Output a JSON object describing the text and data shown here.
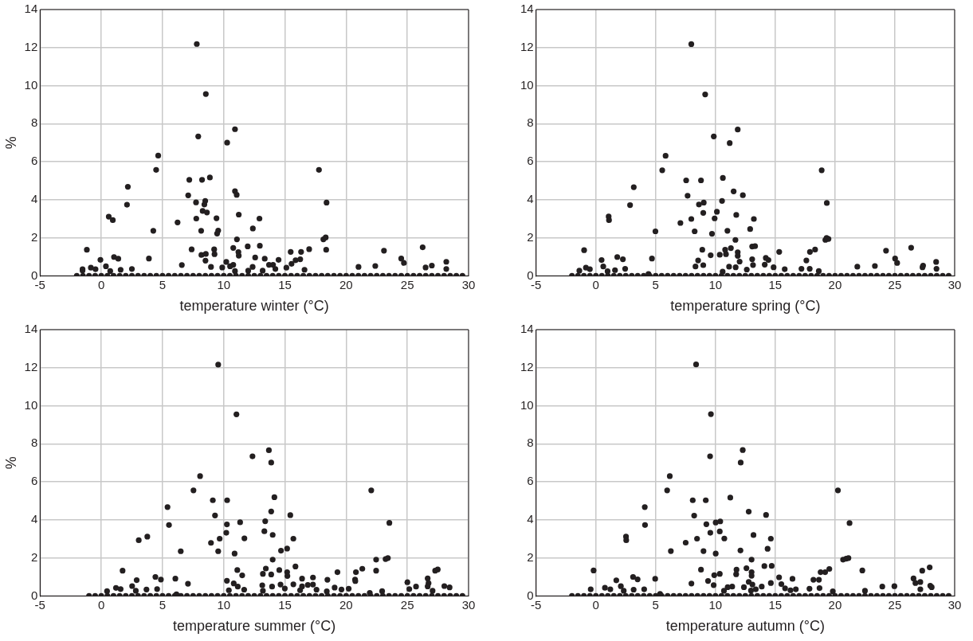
{
  "chart_data": [
    {
      "type": "scatter",
      "xlabel": "temperature winter (°C)",
      "ylabel": "%",
      "xlim": [
        -5,
        30
      ],
      "xticks": [
        -5,
        0,
        5,
        10,
        15,
        20,
        25,
        30
      ],
      "ylim": [
        0,
        14
      ],
      "yticks": [
        0,
        2,
        4,
        6,
        8,
        10,
        12,
        14
      ],
      "grid": true,
      "marker": "circle",
      "series": [
        {
          "color": "#231f20",
          "x": [
            7.8,
            8.54,
            7.92,
            10.92,
            10.28,
            4.65,
            4.48,
            17.78,
            7.19,
            8.23,
            8.87,
            2.17,
            7.1,
            10.92,
            11.06,
            18.4,
            2.1,
            7.74,
            8.49,
            8.42,
            8.28,
            8.63,
            0.61,
            0.94,
            7.76,
            9.41,
            11.23,
            12.92,
            6.23,
            4.25,
            8.16,
            9.55,
            9.46,
            12.38,
            11.08,
            18.14,
            18.33,
            -1.18,
            7.38,
            9.22,
            10.78,
            11.2,
            11.23,
            11.96,
            12.95,
            15.47,
            16.32,
            16.98,
            18.37,
            23.09,
            26.25,
            8.18,
            8.54,
            9.25,
            -0.07,
            1.04,
            1.39,
            3.89,
            8.51,
            12.57,
            13.35,
            14.48,
            15.87,
            16.25,
            24.5,
            24.72,
            28.18,
            10.21,
            0.38,
            -0.85,
            -0.47,
            -1.53,
            1.58,
            2.5,
            6.58,
            9.88,
            10.52,
            10.78,
            8.96,
            12.36,
            13.7,
            14.03,
            15.54,
            21.01,
            22.38,
            27.0,
            26.49,
            28.18,
            0.73,
            10.92,
            12.0,
            13.18,
            14.22,
            15.12,
            16.6,
            -1.53
          ],
          "values": [
            12.19,
            9.56,
            7.33,
            7.71,
            7.0,
            6.32,
            5.57,
            5.57,
            5.05,
            5.05,
            5.17,
            4.68,
            4.23,
            4.45,
            4.26,
            3.85,
            3.74,
            3.86,
            3.94,
            3.75,
            3.41,
            3.33,
            3.11,
            2.93,
            3.01,
            3.03,
            3.22,
            3.01,
            2.81,
            2.37,
            2.37,
            2.38,
            2.22,
            2.49,
            1.92,
            1.92,
            2.02,
            1.37,
            1.39,
            1.39,
            1.47,
            1.25,
            1.06,
            1.55,
            1.58,
            1.26,
            1.26,
            1.4,
            1.37,
            1.32,
            1.5,
            1.1,
            1.15,
            1.14,
            0.84,
            0.99,
            0.9,
            0.91,
            0.8,
            0.96,
            0.9,
            0.84,
            0.82,
            0.87,
            0.91,
            0.68,
            0.74,
            0.73,
            0.5,
            0.43,
            0.35,
            0.35,
            0.32,
            0.36,
            0.57,
            0.44,
            0.5,
            0.58,
            0.47,
            0.47,
            0.58,
            0.58,
            0.63,
            0.47,
            0.52,
            0.54,
            0.44,
            0.36,
            0.25,
            0.25,
            0.27,
            0.27,
            0.36,
            0.43,
            0.32,
            0.28
          ]
        },
        {
          "color": "#231f20",
          "x": [
            -2,
            -1.5,
            -1,
            -0.5,
            0,
            0.5,
            1,
            1.5,
            2,
            2.5,
            3,
            3.5,
            4,
            4.5,
            5,
            5.5,
            6,
            6.5,
            7,
            7.5,
            8,
            8.5,
            9,
            9.5,
            10,
            10.5,
            11,
            11.5,
            12,
            12.5,
            13,
            13.5,
            14,
            14.5,
            15,
            15.5,
            16,
            16.5,
            17,
            17.5,
            18,
            18.5,
            19,
            19.5,
            20,
            20.5,
            21,
            21.5,
            22,
            22.5,
            23,
            23.5,
            24,
            24.5,
            25,
            25.5,
            26,
            26.5,
            27,
            27.5,
            28,
            28.5,
            29,
            29.5
          ],
          "values": [
            0,
            0,
            0,
            0,
            0,
            0,
            0,
            0,
            0,
            0,
            0,
            0,
            0,
            0,
            0,
            0,
            0,
            0,
            0,
            0,
            0,
            0,
            0,
            0,
            0,
            0,
            0,
            0,
            0,
            0,
            0,
            0,
            0,
            0,
            0,
            0,
            0,
            0,
            0,
            0,
            0,
            0,
            0,
            0,
            0,
            0,
            0,
            0,
            0,
            0,
            0,
            0,
            0,
            0,
            0,
            0,
            0,
            0,
            0,
            0,
            0,
            0,
            0,
            0
          ]
        }
      ]
    },
    {
      "type": "scatter",
      "xlabel": "temperature spring (°C)",
      "xlim": [
        -5,
        30
      ],
      "xticks": [
        -5,
        0,
        5,
        10,
        15,
        20,
        25,
        30
      ],
      "ylim": [
        0,
        14
      ],
      "yticks": [
        0,
        2,
        4,
        6,
        8,
        10,
        12,
        14
      ],
      "grid": true,
      "marker": "circle",
      "series": [
        {
          "color": "#231f20",
          "x": [
            7.98,
            9.14,
            9.86,
            11.86,
            11.19,
            5.83,
            5.55,
            18.88,
            7.55,
            8.79,
            10.62,
            3.17,
            7.67,
            11.52,
            12.29,
            10.55,
            9.02,
            8.62,
            19.31,
            2.86,
            8.98,
            10.12,
            1.07,
            1.1,
            7.98,
            9.93,
            11.74,
            13.21,
            7.07,
            4.98,
            8.26,
            11.0,
            9.71,
            12.9,
            11.67,
            19.19,
            19.45,
            19.29,
            -0.98,
            8.9,
            10.81,
            11.29,
            11.86,
            11.86,
            13.07,
            13.31,
            15.33,
            17.9,
            18.33,
            24.26,
            26.36,
            9.6,
            10.36,
            10.88,
            0.48,
            1.79,
            2.26,
            4.69,
            8.55,
            13.07,
            14.21,
            14.43,
            17.6,
            25.02,
            25.19,
            28.45,
            12.02,
            0.62,
            -0.83,
            -0.5,
            -1.38,
            1.6,
            2.45,
            8.33,
            11.14,
            11.69,
            8.98,
            13.14,
            14.12,
            14.86,
            23.33,
            21.86,
            27.36,
            27.31,
            28.48,
            0.98,
            10.6,
            12.62,
            15.79,
            17.19,
            17.88,
            18.64,
            4.4
          ],
          "values": [
            12.18,
            9.54,
            7.33,
            7.69,
            6.98,
            6.31,
            5.55,
            5.55,
            5.02,
            5.02,
            5.15,
            4.66,
            4.21,
            4.44,
            4.24,
            3.94,
            3.85,
            3.75,
            3.83,
            3.72,
            3.31,
            3.37,
            3.12,
            2.93,
            2.99,
            3.02,
            3.2,
            2.99,
            2.78,
            2.34,
            2.34,
            2.37,
            2.21,
            2.46,
            1.89,
            1.89,
            1.94,
            1.99,
            1.35,
            1.37,
            1.37,
            1.46,
            1.24,
            1.05,
            1.54,
            1.56,
            1.26,
            1.26,
            1.38,
            1.32,
            1.48,
            1.08,
            1.11,
            1.14,
            0.83,
            0.99,
            0.87,
            0.91,
            0.81,
            0.87,
            0.94,
            0.83,
            0.81,
            0.91,
            0.68,
            0.73,
            0.75,
            0.49,
            0.43,
            0.35,
            0.27,
            0.3,
            0.37,
            0.49,
            0.48,
            0.45,
            0.56,
            0.57,
            0.59,
            0.45,
            0.52,
            0.48,
            0.54,
            0.45,
            0.37,
            0.24,
            0.22,
            0.33,
            0.35,
            0.37,
            0.37,
            0.25,
            0.1
          ]
        },
        {
          "color": "#231f20",
          "x": [
            -2,
            -1.5,
            -1,
            -0.5,
            0,
            0.5,
            1,
            1.5,
            2,
            2.5,
            3,
            3.5,
            4,
            4.5,
            5,
            5.5,
            6,
            6.5,
            7,
            7.5,
            8,
            8.5,
            9,
            9.5,
            10,
            10.5,
            11,
            11.5,
            12,
            12.5,
            13,
            13.5,
            14,
            14.5,
            15,
            15.5,
            16,
            16.5,
            17,
            17.5,
            18,
            18.5,
            19,
            19.5,
            20,
            20.5,
            21,
            21.5,
            22,
            22.5,
            23,
            23.5,
            24,
            24.5,
            25,
            25.5,
            26,
            26.5,
            27,
            27.5,
            28,
            28.5,
            29,
            29.5
          ],
          "values": [
            0,
            0,
            0,
            0,
            0,
            0,
            0,
            0,
            0,
            0,
            0,
            0,
            0,
            0,
            0,
            0,
            0,
            0,
            0,
            0,
            0,
            0,
            0,
            0,
            0,
            0,
            0,
            0,
            0,
            0,
            0,
            0,
            0,
            0,
            0,
            0,
            0,
            0,
            0,
            0,
            0,
            0,
            0,
            0,
            0,
            0,
            0,
            0,
            0,
            0,
            0,
            0,
            0,
            0,
            0,
            0,
            0,
            0,
            0,
            0,
            0,
            0,
            0,
            0
          ]
        }
      ]
    },
    {
      "type": "scatter",
      "xlabel": "temperature summer (°C)",
      "ylabel": "%",
      "xlim": [
        -5,
        30
      ],
      "xticks": [
        -5,
        0,
        5,
        10,
        15,
        20,
        25,
        30
      ],
      "ylim": [
        0,
        14
      ],
      "yticks": [
        0,
        2,
        4,
        6,
        8,
        10,
        12,
        14
      ],
      "grid": true,
      "marker": "circle",
      "series": [
        {
          "color": "#231f20",
          "x": [
            9.55,
            11.04,
            12.35,
            13.69,
            13.88,
            8.07,
            7.53,
            22.05,
            9.11,
            10.28,
            14.14,
            5.41,
            9.29,
            13.88,
            15.44,
            10.26,
            11.34,
            13.39,
            23.53,
            5.53,
            10.21,
            13.32,
            3.06,
            3.76,
            9.67,
            11.69,
            14.0,
            15.69,
            8.96,
            6.49,
            9.55,
            10.89,
            14.68,
            15.18,
            14.0,
            22.45,
            23.22,
            23.41,
            1.74,
            11.11,
            13.44,
            14.54,
            15.86,
            22.45,
            21.32,
            27.48,
            27.27,
            15.18,
            19.29,
            20.8,
            13.2,
            13.88,
            15.2,
            11.51,
            2.89,
            4.42,
            4.87,
            6.05,
            10.26,
            17.29,
            16.4,
            18.47,
            20.73,
            20.75,
            26.66,
            25.0,
            26.73,
            7.08,
            10.82,
            2.52,
            1.2,
            1.58,
            0.47,
            2.82,
            3.69,
            4.56,
            11.15,
            13.15,
            13.95,
            14.64,
            15.69,
            16.4,
            16.87,
            17.29,
            25.71,
            26.66,
            28.02,
            28.45,
            25.16,
            19.06,
            20.21,
            19.62,
            11.67,
            10.42,
            13.2,
            14.99,
            16.24,
            17.58,
            18.42,
            22.94,
            27.06,
            21.93,
            6.14
          ],
          "values": [
            12.16,
            9.55,
            7.34,
            7.66,
            7.01,
            6.3,
            5.55,
            5.55,
            5.03,
            5.03,
            5.19,
            4.67,
            4.23,
            4.44,
            4.25,
            3.76,
            3.87,
            3.93,
            3.84,
            3.73,
            3.32,
            3.4,
            2.93,
            3.12,
            3.01,
            3.03,
            3.21,
            3.01,
            2.79,
            2.35,
            2.35,
            2.23,
            2.38,
            2.49,
            1.91,
            1.91,
            1.94,
            1.99,
            1.33,
            1.36,
            1.44,
            1.36,
            1.55,
            1.33,
            1.43,
            1.39,
            1.33,
            1.25,
            1.25,
            1.25,
            1.16,
            1.13,
            1.05,
            1.08,
            0.83,
            1.0,
            0.86,
            0.91,
            0.8,
            0.97,
            0.91,
            0.85,
            0.86,
            0.78,
            0.92,
            0.72,
            0.67,
            0.64,
            0.66,
            0.52,
            0.42,
            0.36,
            0.25,
            0.27,
            0.34,
            0.36,
            0.49,
            0.56,
            0.49,
            0.6,
            0.61,
            0.5,
            0.58,
            0.6,
            0.49,
            0.5,
            0.52,
            0.45,
            0.36,
            0.44,
            0.38,
            0.34,
            0.33,
            0.3,
            0.27,
            0.39,
            0.3,
            0.33,
            0.24,
            0.25,
            0.27,
            0.16,
            0.09
          ]
        },
        {
          "color": "#231f20",
          "x": [
            -1,
            -0.5,
            0,
            0.5,
            1,
            1.5,
            2,
            2.5,
            3,
            3.5,
            4,
            4.5,
            5,
            5.5,
            6,
            6.5,
            7,
            7.5,
            8,
            8.5,
            9,
            9.5,
            10,
            10.5,
            11,
            11.5,
            12,
            12.5,
            13,
            13.5,
            14,
            14.5,
            15,
            15.5,
            16,
            16.5,
            17,
            17.5,
            18,
            18.5,
            19,
            19.5,
            20,
            20.5,
            21,
            21.5,
            22,
            22.5,
            23,
            23.5,
            24,
            24.5,
            25,
            25.5,
            26,
            26.5,
            27,
            27.5,
            28,
            28.5,
            29,
            29.5
          ],
          "values": [
            0,
            0,
            0,
            0,
            0,
            0,
            0,
            0,
            0,
            0,
            0,
            0,
            0,
            0,
            0,
            0,
            0,
            0,
            0,
            0,
            0,
            0,
            0,
            0,
            0,
            0,
            0,
            0,
            0,
            0,
            0,
            0,
            0,
            0,
            0,
            0,
            0,
            0,
            0,
            0,
            0,
            0,
            0,
            0,
            0,
            0,
            0,
            0,
            0,
            0,
            0,
            0,
            0,
            0,
            0,
            0,
            0,
            0,
            0,
            0,
            0,
            0
          ]
        }
      ]
    },
    {
      "type": "scatter",
      "xlabel": "temperature autumn (°C)",
      "xlim": [
        -5,
        30
      ],
      "xticks": [
        -5,
        0,
        5,
        10,
        15,
        20,
        25,
        30
      ],
      "ylim": [
        0,
        14
      ],
      "yticks": [
        0,
        2,
        4,
        6,
        8,
        10,
        12,
        14
      ],
      "grid": true,
      "marker": "circle",
      "series": [
        {
          "color": "#231f20",
          "x": [
            8.38,
            9.62,
            9.55,
            12.28,
            12.11,
            6.18,
            5.96,
            20.24,
            8.1,
            9.19,
            11.24,
            4.09,
            8.22,
            12.78,
            14.23,
            10.02,
            10.4,
            9.24,
            21.21,
            4.11,
            9.57,
            10.36,
            2.52,
            2.54,
            8.46,
            10.74,
            13.18,
            14.63,
            7.51,
            6.27,
            9.0,
            12.09,
            10.02,
            14.36,
            13.02,
            20.67,
            20.93,
            21.12,
            -0.19,
            8.79,
            11.76,
            12.59,
            13.02,
            13.02,
            14.09,
            14.7,
            18.79,
            19.17,
            19.52,
            22.28,
            27.29,
            27.91,
            9.9,
            10.36,
            11.73,
            1.71,
            3.11,
            3.49,
            4.96,
            9.38,
            15.32,
            16.44,
            18.19,
            18.65,
            26.56,
            26.72,
            27.13,
            12.78,
            7.99,
            9.85,
            0.76,
            2.09,
            -0.43,
            1.21,
            2.33,
            3.16,
            4.04,
            11.4,
            11.02,
            12.38,
            13.09,
            13.87,
            14.63,
            15.51,
            18.7,
            23.95,
            24.96,
            27.96,
            28.08,
            27.13,
            22.5,
            10.71,
            12.97,
            13.37,
            15.82,
            16.27,
            16.72,
            17.86,
            19.81,
            5.37
          ],
          "values": [
            12.17,
            9.56,
            7.34,
            7.67,
            7.01,
            6.3,
            5.55,
            5.55,
            5.03,
            5.03,
            5.17,
            4.67,
            4.22,
            4.43,
            4.26,
            3.86,
            3.92,
            3.77,
            3.83,
            3.73,
            3.32,
            3.39,
            3.12,
            2.93,
            3.01,
            3.02,
            3.2,
            3.01,
            2.8,
            2.36,
            2.36,
            2.39,
            2.23,
            2.48,
            1.91,
            1.91,
            1.96,
            1.99,
            1.34,
            1.38,
            1.38,
            1.46,
            1.25,
            1.06,
            1.57,
            1.58,
            1.25,
            1.25,
            1.42,
            1.34,
            1.33,
            1.5,
            1.09,
            1.16,
            1.14,
            0.82,
            1.0,
            0.87,
            0.9,
            0.79,
            0.98,
            0.9,
            0.85,
            0.85,
            0.92,
            0.68,
            0.73,
            0.74,
            0.65,
            0.57,
            0.43,
            0.51,
            0.35,
            0.35,
            0.27,
            0.33,
            0.35,
            0.49,
            0.46,
            0.46,
            0.6,
            0.49,
            0.68,
            0.62,
            0.41,
            0.49,
            0.51,
            0.54,
            0.46,
            0.35,
            0.27,
            0.27,
            0.28,
            0.35,
            0.4,
            0.3,
            0.35,
            0.38,
            0.24,
            0.11
          ]
        },
        {
          "color": "#231f20",
          "x": [
            -2,
            -1.5,
            -1,
            -0.5,
            0,
            0.5,
            1,
            1.5,
            2,
            2.5,
            3,
            3.5,
            4,
            4.5,
            5,
            5.5,
            6,
            6.5,
            7,
            7.5,
            8,
            8.5,
            9,
            9.5,
            10,
            10.5,
            11,
            11.5,
            12,
            12.5,
            13,
            13.5,
            14,
            14.5,
            15,
            15.5,
            16,
            16.5,
            17,
            17.5,
            18,
            18.5,
            19,
            19.5,
            20,
            20.5,
            21,
            21.5,
            22,
            22.5,
            23,
            23.5,
            24,
            24.5,
            25,
            25.5,
            26,
            26.5,
            27,
            27.5,
            28,
            28.5,
            29,
            29.5
          ],
          "values": [
            0,
            0,
            0,
            0,
            0,
            0,
            0,
            0,
            0,
            0,
            0,
            0,
            0,
            0,
            0,
            0,
            0,
            0,
            0,
            0,
            0,
            0,
            0,
            0,
            0,
            0,
            0,
            0,
            0,
            0,
            0,
            0,
            0,
            0,
            0,
            0,
            0,
            0,
            0,
            0,
            0,
            0,
            0,
            0,
            0,
            0,
            0,
            0,
            0,
            0,
            0,
            0,
            0,
            0,
            0,
            0,
            0,
            0,
            0,
            0,
            0,
            0,
            0,
            0
          ]
        }
      ]
    }
  ]
}
